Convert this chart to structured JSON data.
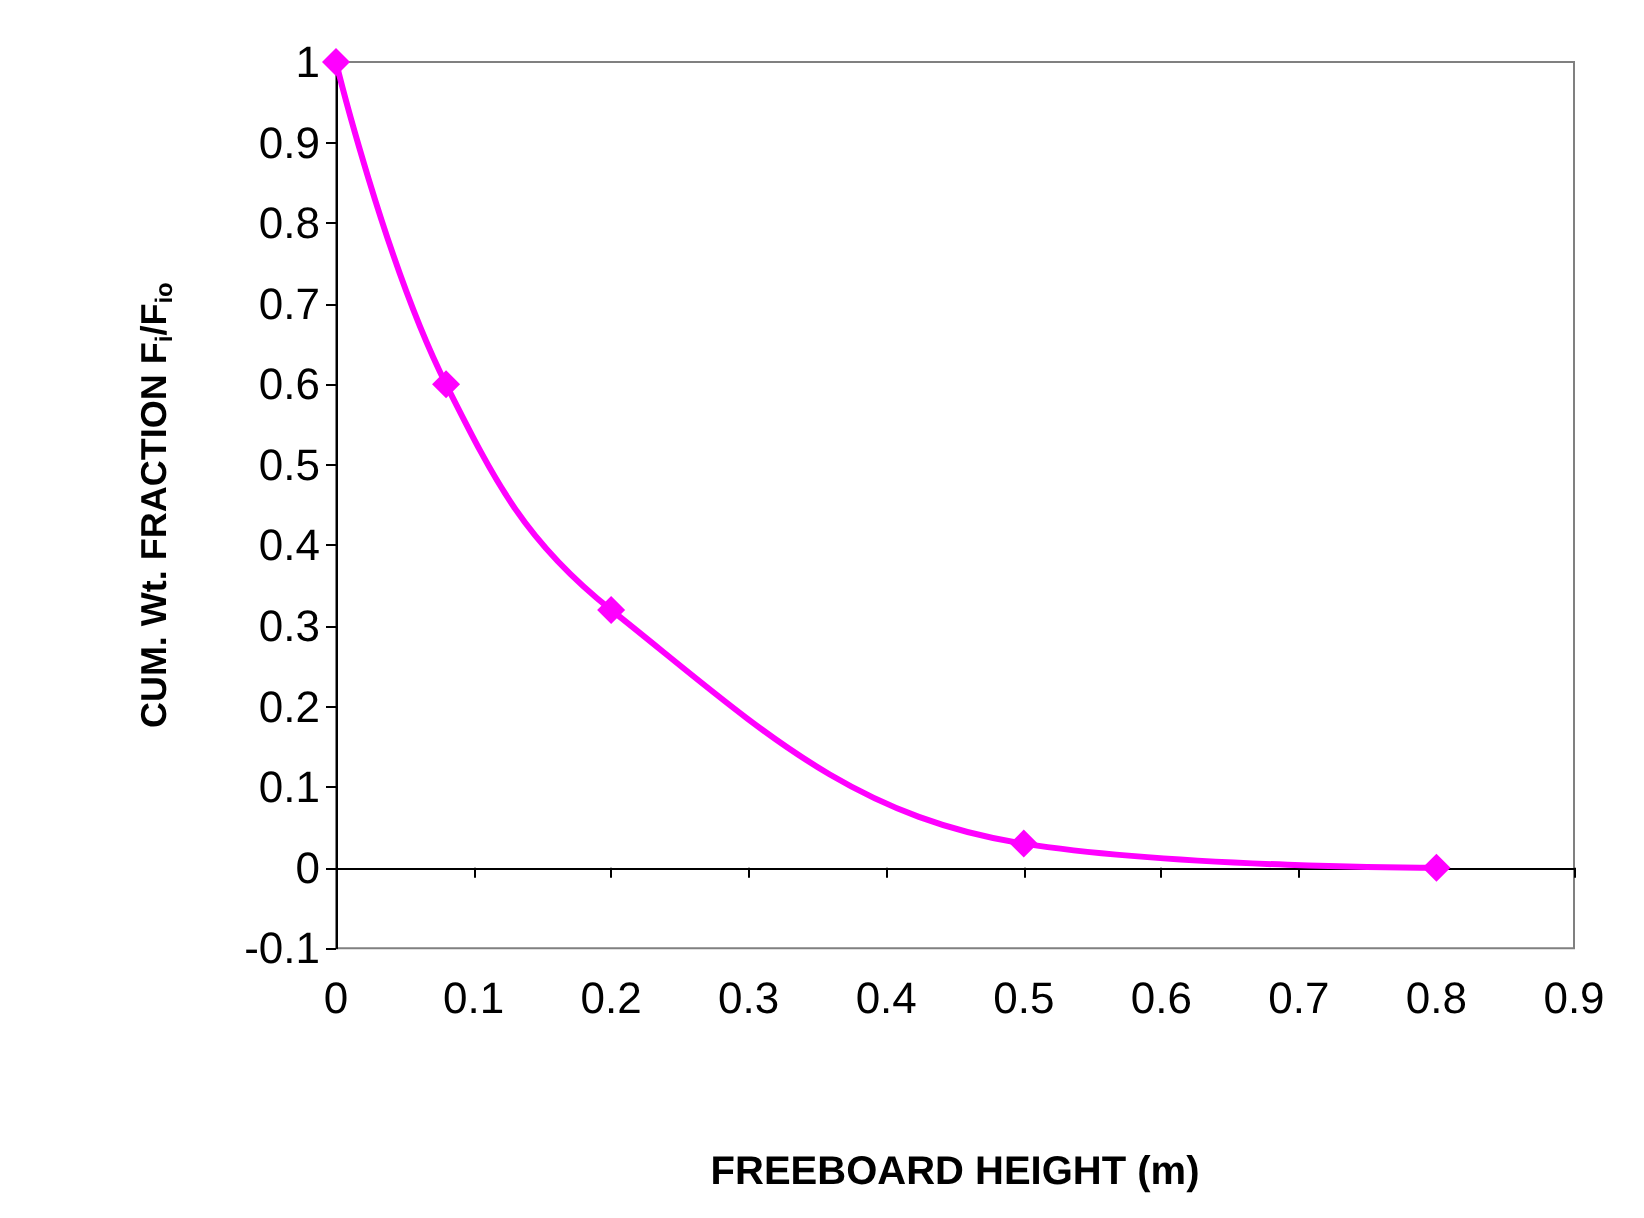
{
  "chart_data": {
    "type": "line",
    "xlabel": "FREEBOARD HEIGHT (m)",
    "ylabel": "CUM. Wt. FRACTION F$_{i}$/F$_{io}$",
    "x": [
      0,
      0.08,
      0.2,
      0.5,
      0.8
    ],
    "series": [
      {
        "color": "#ff00ff",
        "values": [
          1,
          0.6,
          0.32,
          0.03,
          0
        ]
      }
    ],
    "xlim": [
      0,
      0.9
    ],
    "xticks": [
      0,
      0.1,
      0.2,
      0.3,
      0.4,
      0.5,
      0.6,
      0.7,
      0.8,
      0.9
    ],
    "ylim": [
      -0.1,
      1
    ],
    "yticks": [
      -0.1,
      0,
      0.1,
      0.2,
      0.3,
      0.4,
      0.5,
      0.6,
      0.7,
      0.8,
      0.9,
      1
    ],
    "marker": "diamond",
    "line_style": "solid"
  }
}
